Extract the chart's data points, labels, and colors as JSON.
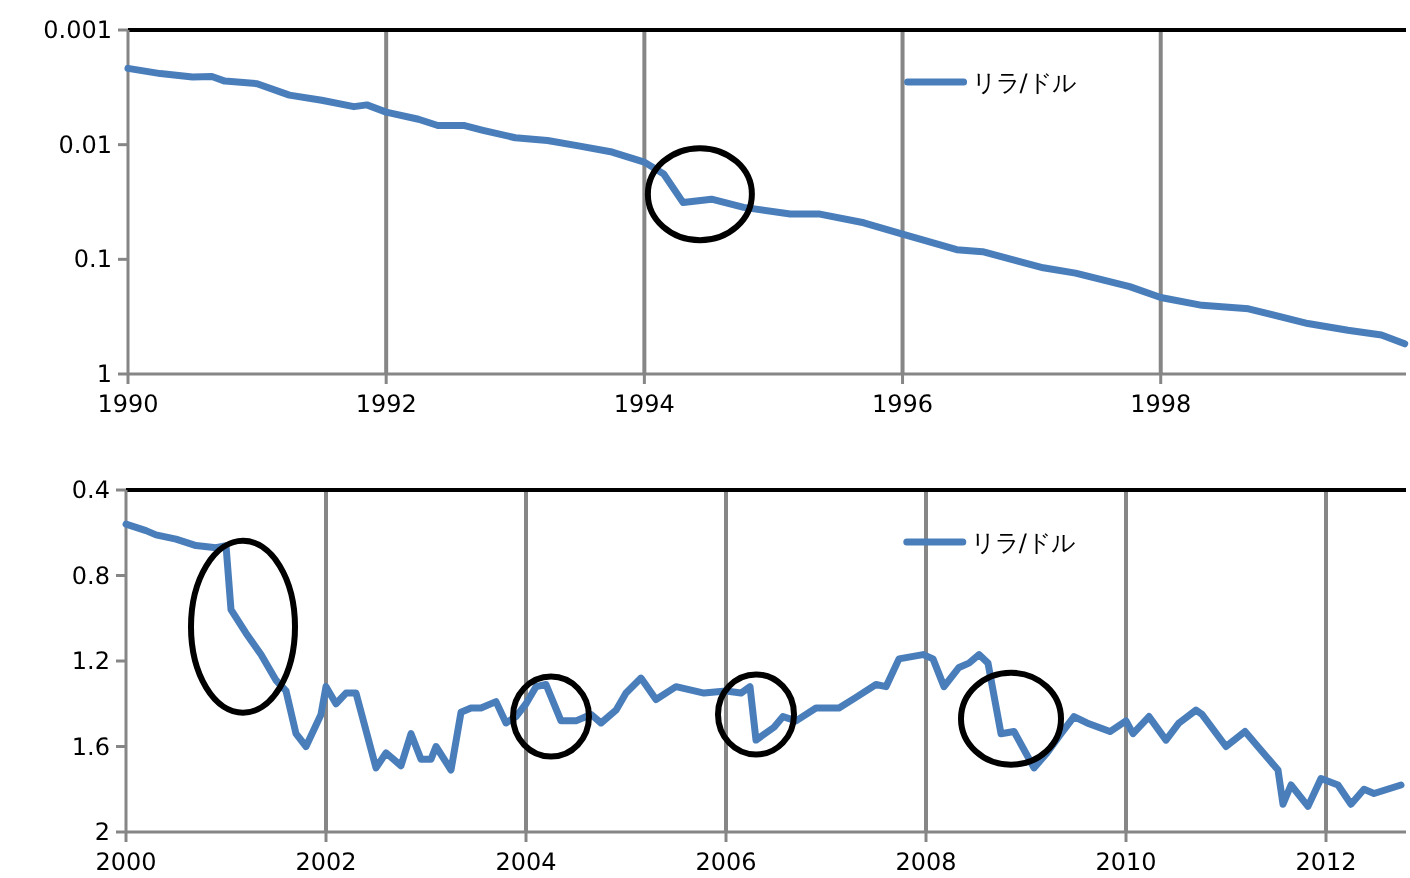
{
  "chart_data": [
    {
      "type": "line",
      "log": "y",
      "xlim": [
        1990,
        1999.9
      ],
      "ylim": [
        1,
        0.001
      ],
      "xticks": [
        1990,
        1992,
        1994,
        1996,
        1998
      ],
      "yticks": [
        0.001,
        0.01,
        0.1,
        1
      ],
      "grid": "x",
      "legend": "top right",
      "series": [
        {
          "name": "リラ/ドル",
          "color": "#4a7ebb",
          "x": [
            1990.0,
            1990.25,
            1990.5,
            1990.65,
            1990.75,
            1991.0,
            1991.25,
            1991.5,
            1991.75,
            1991.85,
            1992.0,
            1992.25,
            1992.4,
            1992.6,
            1992.75,
            1993.0,
            1993.25,
            1993.5,
            1993.75,
            1994.0,
            1994.15,
            1994.3,
            1994.52,
            1994.77,
            1995.13,
            1995.36,
            1995.7,
            1996.0,
            1996.42,
            1996.62,
            1997.09,
            1997.34,
            1997.76,
            1998.0,
            1998.32,
            1998.68,
            1999.14,
            1999.45,
            1999.71,
            1999.89
          ],
          "values": [
            0.00216,
            0.0024,
            0.00257,
            0.00254,
            0.00279,
            0.00294,
            0.0037,
            0.0041,
            0.00466,
            0.0045,
            0.0052,
            0.006,
            0.0068,
            0.0068,
            0.0075,
            0.0087,
            0.0092,
            0.0103,
            0.0116,
            0.0142,
            0.018,
            0.032,
            0.0299,
            0.0352,
            0.0403,
            0.0403,
            0.048,
            0.0604,
            0.0824,
            0.0858,
            0.1186,
            0.132,
            0.173,
            0.215,
            0.252,
            0.27,
            0.363,
            0.416,
            0.457,
            0.545
          ]
        }
      ]
    },
    {
      "type": "line",
      "xlim": [
        2000,
        2012.8
      ],
      "ylim": [
        2,
        0.4
      ],
      "xticks": [
        2000,
        2002,
        2004,
        2006,
        2008,
        2010,
        2012
      ],
      "yticks": [
        0.4,
        0.8,
        1.2,
        1.6,
        2
      ],
      "grid": "x",
      "legend": "top right",
      "series": [
        {
          "name": "リラ/ドル",
          "color": "#4a7ebb",
          "x": [
            2000.0,
            2000.2,
            2000.3,
            2000.5,
            2000.7,
            2000.9,
            2001.0,
            2001.05,
            2001.2,
            2001.35,
            2001.5,
            2001.6,
            2001.7,
            2001.8,
            2001.95,
            2002.0,
            2002.1,
            2002.2,
            2002.3,
            2002.5,
            2002.6,
            2002.75,
            2002.85,
            2002.95,
            2003.05,
            2003.1,
            2003.25,
            2003.35,
            2003.45,
            2003.55,
            2003.7,
            2003.8,
            2003.9,
            2004.0,
            2004.1,
            2004.2,
            2004.35,
            2004.5,
            2004.65,
            2004.75,
            2004.9,
            2005.0,
            2005.15,
            2005.3,
            2005.5,
            2005.78,
            2006.0,
            2006.15,
            2006.24,
            2006.3,
            2006.48,
            2006.57,
            2006.7,
            2006.9,
            2007.13,
            2007.3,
            2007.5,
            2007.6,
            2007.73,
            2007.97,
            2008.07,
            2008.18,
            2008.33,
            2008.43,
            2008.53,
            2008.62,
            2008.75,
            2008.88,
            2009.08,
            2009.21,
            2009.35,
            2009.48,
            2009.61,
            2009.84,
            2010.0,
            2010.07,
            2010.23,
            2010.4,
            2010.53,
            2010.7,
            2010.76,
            2011.0,
            2011.19,
            2011.52,
            2011.57,
            2011.65,
            2011.82,
            2011.95,
            2012.12,
            2012.25,
            2012.38,
            2012.48,
            2012.75
          ],
          "values": [
            0.56,
            0.59,
            0.61,
            0.63,
            0.66,
            0.67,
            0.66,
            0.96,
            1.07,
            1.17,
            1.29,
            1.34,
            1.54,
            1.6,
            1.45,
            1.32,
            1.4,
            1.35,
            1.35,
            1.7,
            1.63,
            1.69,
            1.54,
            1.66,
            1.66,
            1.6,
            1.71,
            1.44,
            1.42,
            1.42,
            1.39,
            1.49,
            1.46,
            1.4,
            1.32,
            1.31,
            1.48,
            1.48,
            1.45,
            1.49,
            1.43,
            1.35,
            1.28,
            1.38,
            1.32,
            1.35,
            1.34,
            1.35,
            1.32,
            1.57,
            1.51,
            1.46,
            1.48,
            1.42,
            1.42,
            1.37,
            1.31,
            1.32,
            1.19,
            1.17,
            1.19,
            1.32,
            1.23,
            1.21,
            1.17,
            1.21,
            1.54,
            1.53,
            1.7,
            1.63,
            1.54,
            1.46,
            1.49,
            1.53,
            1.48,
            1.54,
            1.46,
            1.57,
            1.49,
            1.43,
            1.45,
            1.6,
            1.53,
            1.71,
            1.87,
            1.78,
            1.88,
            1.75,
            1.78,
            1.87,
            1.8,
            1.82,
            1.78
          ]
        }
      ]
    }
  ]
}
